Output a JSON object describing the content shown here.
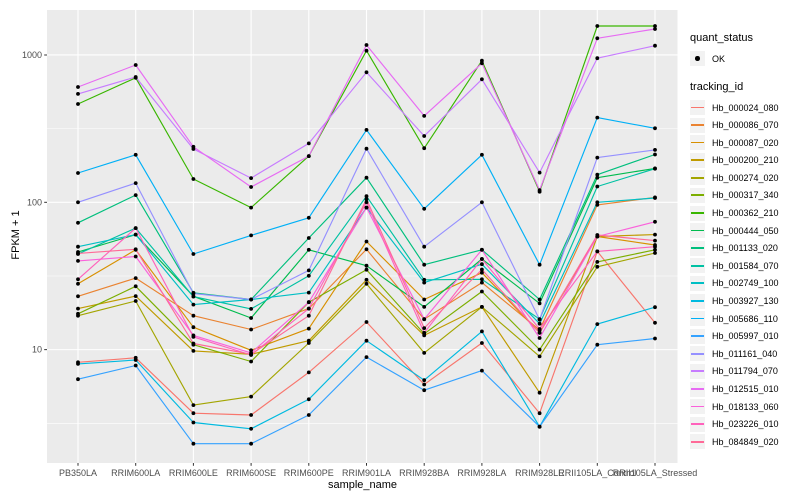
{
  "chart_data": {
    "type": "line",
    "title": "",
    "xlabel": "sample_name",
    "ylabel": "FPKM + 1",
    "yscale": "log10",
    "ylim": [
      1.7,
      2020
    ],
    "grid": true,
    "legend_position": "right",
    "panel_background": "#EBEBEB",
    "gridline_color": "#FFFFFF",
    "point_color": "#000000",
    "tick_label_color": "#4D4D4D",
    "ytick_labels": [
      "10",
      "100",
      "1000"
    ],
    "ytick_values": [
      10,
      100,
      1000
    ],
    "yminor_values": [
      3.162,
      31.62,
      316.2
    ],
    "categories": [
      "PB350LA",
      "RRIM600LA",
      "RRIM600LE",
      "RRIM600SE",
      "RRIM600PE",
      "RRIM901LA",
      "RRIM928BA",
      "RRIM928LA",
      "RRIM928LE",
      "RRII105LA_Control",
      "RRII105LA_Stressed"
    ],
    "series": [
      {
        "name": "Hb_000024_080",
        "color": "#F8766D",
        "values": [
          8.2,
          8.8,
          3.7,
          3.6,
          7.0,
          15.4,
          5.8,
          11.1,
          3.7,
          46.4,
          15.2
        ]
      },
      {
        "name": "Hb_000086_070",
        "color": "#EA8331",
        "values": [
          23,
          30.6,
          17,
          13.7,
          19,
          48,
          16.1,
          28.5,
          13.6,
          96,
          108
        ]
      },
      {
        "name": "Hb_000087_020",
        "color": "#D89000",
        "values": [
          28,
          47.6,
          14.2,
          9.9,
          13.9,
          54.2,
          21.9,
          33.3,
          13,
          58.6,
          51.3
        ]
      },
      {
        "name": "Hb_000200_210",
        "color": "#C09B00",
        "values": [
          19,
          23.1,
          9.8,
          9.3,
          11.5,
          29.8,
          12.5,
          19.5,
          5.1,
          58.6,
          60.4
        ]
      },
      {
        "name": "Hb_000274_020",
        "color": "#A3A500",
        "values": [
          17,
          21.4,
          4.2,
          4.8,
          11.1,
          28,
          9.5,
          19.5,
          9,
          36.5,
          45.3
        ]
      },
      {
        "name": "Hb_000317_340",
        "color": "#7CAE00",
        "values": [
          17.5,
          26.9,
          10.8,
          8.3,
          21,
          34.9,
          12.8,
          24.8,
          10,
          39.4,
          47.6
        ]
      },
      {
        "name": "Hb_000362_210",
        "color": "#39B600",
        "values": [
          465,
          700,
          144,
          92,
          206,
          1070,
          233,
          914,
          118,
          1574,
          1574
        ]
      },
      {
        "name": "Hb_000444_050",
        "color": "#00BB4E",
        "values": [
          46,
          60.4,
          23,
          16.4,
          47.6,
          37.1,
          19.5,
          41.2,
          20.6,
          147,
          170
        ]
      },
      {
        "name": "Hb_001133_020",
        "color": "#00BF7D",
        "values": [
          72.6,
          112,
          24.3,
          21.9,
          57.2,
          147,
          37.7,
          47.6,
          21.9,
          154,
          211
        ]
      },
      {
        "name": "Hb_001584_070",
        "color": "#00C1A3",
        "values": [
          44.6,
          66.8,
          22.9,
          18.9,
          31.7,
          110,
          29.8,
          30,
          16.1,
          128,
          169
        ]
      },
      {
        "name": "Hb_002749_100",
        "color": "#00BFC4",
        "values": [
          50,
          60.4,
          20.2,
          21.9,
          24.4,
          92,
          28.5,
          38,
          15,
          100,
          107
        ]
      },
      {
        "name": "Hb_003927_130",
        "color": "#00BAE0",
        "values": [
          8,
          8.5,
          3.2,
          2.9,
          4.6,
          11.5,
          6.2,
          13.3,
          3,
          14.9,
          19.4
        ]
      },
      {
        "name": "Hb_005686_110",
        "color": "#00B0F6",
        "values": [
          158,
          210,
          44.6,
          59.6,
          78.5,
          310,
          90.4,
          210,
          37.7,
          376,
          318
        ]
      },
      {
        "name": "Hb_005997_010",
        "color": "#35A2FF",
        "values": [
          6.3,
          7.8,
          2.3,
          2.3,
          3.6,
          8.9,
          5.3,
          7.2,
          3,
          10.8,
          11.9
        ]
      },
      {
        "name": "Hb_011161_040",
        "color": "#9590FF",
        "values": [
          100,
          135,
          24,
          21.9,
          34.5,
          231,
          50,
          100,
          16,
          201,
          227
        ]
      },
      {
        "name": "Hb_011794_070",
        "color": "#C77CFF",
        "values": [
          544,
          709,
          230,
          146,
          251,
          763,
          282,
          684,
          159,
          951,
          1156
        ]
      },
      {
        "name": "Hb_012515_010",
        "color": "#E76BF3",
        "values": [
          606,
          855,
          238,
          127,
          206,
          1169,
          386,
          878,
          121,
          1297,
          1500
        ]
      },
      {
        "name": "Hb_018133_060",
        "color": "#FA62DB",
        "values": [
          40,
          42.9,
          12.5,
          9.5,
          21,
          92,
          16.1,
          47.6,
          12,
          58.6,
          73.7
        ]
      },
      {
        "name": "Hb_023226_010",
        "color": "#FF62BC",
        "values": [
          30,
          66.8,
          12.2,
          9.2,
          19,
          100,
          13,
          41.2,
          13.8,
          46.4,
          50
        ]
      },
      {
        "name": "Hb_084849_020",
        "color": "#FF6A98",
        "values": [
          45,
          48,
          11,
          9.3,
          17,
          105,
          14,
          35,
          13,
          60,
          55
        ]
      }
    ],
    "legend": {
      "quant_status_title": "quant_status",
      "quant_status_items": [
        {
          "label": "OK",
          "marker": "point",
          "color": "#000000"
        }
      ],
      "tracking_id_title": "tracking_id"
    }
  }
}
